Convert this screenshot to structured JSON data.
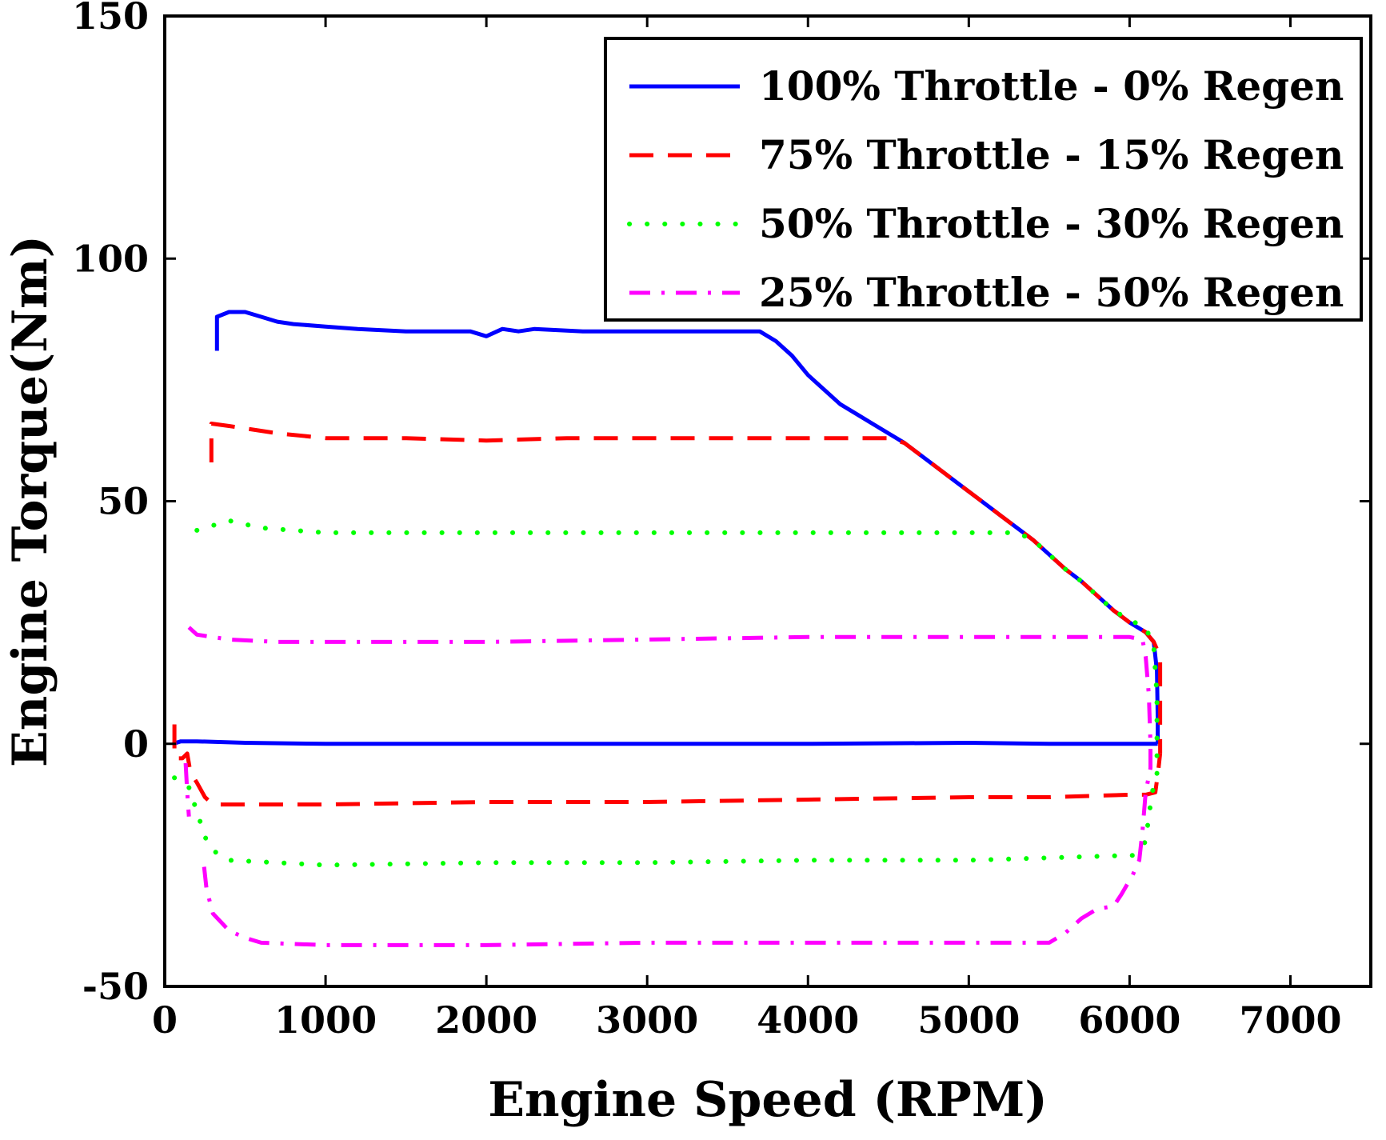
{
  "chart_data": {
    "type": "line",
    "title": "",
    "xlabel": "Engine Speed (RPM)",
    "ylabel": "Engine Torque(Nm)",
    "xlim": [
      0,
      7500
    ],
    "ylim": [
      -50,
      150
    ],
    "xticks": [
      0,
      1000,
      2000,
      3000,
      4000,
      5000,
      6000,
      7000
    ],
    "yticks": [
      -50,
      0,
      50,
      100,
      150
    ],
    "grid": false,
    "legend_position": "top-right",
    "series": [
      {
        "name": "100% Throttle - 0% Regen",
        "color": "#0000ff",
        "style": "solid",
        "segments": [
          {
            "points": [
              [
                325,
                81
              ],
              [
                325,
                88
              ],
              [
                400,
                89
              ],
              [
                500,
                89
              ],
              [
                600,
                88
              ],
              [
                700,
                87
              ],
              [
                800,
                86.5
              ],
              [
                1000,
                86
              ],
              [
                1200,
                85.5
              ],
              [
                1500,
                85
              ],
              [
                1900,
                85
              ],
              [
                2000,
                84
              ],
              [
                2100,
                85.5
              ],
              [
                2200,
                85
              ],
              [
                2300,
                85.5
              ],
              [
                2600,
                85
              ],
              [
                3000,
                85
              ],
              [
                3500,
                85
              ],
              [
                3700,
                85
              ],
              [
                3800,
                83
              ],
              [
                3900,
                80
              ],
              [
                4000,
                76
              ],
              [
                4100,
                73
              ],
              [
                4200,
                70
              ],
              [
                4300,
                68
              ],
              [
                4400,
                66
              ],
              [
                4500,
                64
              ],
              [
                4600,
                62
              ],
              [
                4700,
                59.5
              ],
              [
                4800,
                57
              ],
              [
                4900,
                54.5
              ],
              [
                5000,
                52
              ],
              [
                5100,
                49.5
              ],
              [
                5200,
                47
              ],
              [
                5300,
                44.5
              ],
              [
                5400,
                42
              ],
              [
                5500,
                39
              ],
              [
                5600,
                36
              ],
              [
                5700,
                33.5
              ],
              [
                5800,
                30.5
              ],
              [
                5900,
                27.5
              ],
              [
                6000,
                25
              ],
              [
                6100,
                23
              ],
              [
                6150,
                21
              ],
              [
                6170,
                15
              ],
              [
                6175,
                5
              ],
              [
                6175,
                0
              ]
            ]
          },
          {
            "points": [
              [
                50,
                0
              ],
              [
                100,
                0.5
              ],
              [
                200,
                0.5
              ],
              [
                500,
                0.2
              ],
              [
                1000,
                0
              ],
              [
                2000,
                0
              ],
              [
                3000,
                0
              ],
              [
                4000,
                0
              ],
              [
                5000,
                0.2
              ],
              [
                5500,
                0
              ],
              [
                6000,
                0
              ],
              [
                6175,
                0
              ]
            ]
          }
        ]
      },
      {
        "name": "75% Throttle - 15% Regen",
        "color": "#ff0000",
        "style": "dashed",
        "segments": [
          {
            "points": [
              [
                290,
                58
              ],
              [
                290,
                66
              ],
              [
                400,
                65.5
              ],
              [
                700,
                64
              ],
              [
                1000,
                63
              ],
              [
                1500,
                63
              ],
              [
                2000,
                62.5
              ],
              [
                2500,
                63
              ],
              [
                3000,
                63
              ],
              [
                3500,
                63
              ],
              [
                4000,
                63
              ],
              [
                4500,
                63
              ],
              [
                4600,
                62
              ],
              [
                4700,
                59.5
              ],
              [
                4800,
                57
              ],
              [
                4900,
                54.5
              ],
              [
                5000,
                52
              ],
              [
                5100,
                49.5
              ],
              [
                5200,
                47
              ],
              [
                5300,
                44.5
              ],
              [
                5400,
                42
              ],
              [
                5500,
                39
              ],
              [
                5600,
                36
              ],
              [
                5700,
                33.5
              ],
              [
                5800,
                30.5
              ],
              [
                5900,
                27.5
              ],
              [
                6000,
                25
              ],
              [
                6100,
                23
              ],
              [
                6150,
                21
              ],
              [
                6190,
                18
              ],
              [
                6190,
                -2
              ]
            ]
          },
          {
            "points": [
              [
                60,
                4
              ],
              [
                60,
                -3
              ],
              [
                110,
                -3
              ],
              [
                140,
                -2
              ],
              [
                160,
                -6
              ],
              [
                200,
                -8
              ],
              [
                250,
                -11
              ],
              [
                300,
                -12.5
              ],
              [
                600,
                -12.5
              ],
              [
                1000,
                -12.5
              ],
              [
                2000,
                -12
              ],
              [
                3000,
                -12
              ],
              [
                4000,
                -11.5
              ],
              [
                5000,
                -11
              ],
              [
                5500,
                -11
              ],
              [
                6000,
                -10.5
              ],
              [
                6100,
                -10.5
              ],
              [
                6160,
                -10
              ],
              [
                6180,
                -5
              ],
              [
                6190,
                -2
              ]
            ]
          }
        ]
      },
      {
        "name": "50% Throttle - 30% Regen",
        "color": "#00ff00",
        "style": "dotted",
        "segments": [
          {
            "points": [
              [
                200,
                44
              ],
              [
                400,
                46
              ],
              [
                600,
                44.5
              ],
              [
                1000,
                43.5
              ],
              [
                2000,
                43.5
              ],
              [
                3000,
                43.5
              ],
              [
                4000,
                43.5
              ],
              [
                5000,
                43.5
              ],
              [
                5200,
                43.5
              ],
              [
                5300,
                43.5
              ],
              [
                5400,
                42
              ],
              [
                5500,
                39
              ],
              [
                5600,
                36
              ],
              [
                5700,
                33.5
              ],
              [
                5800,
                30.5
              ],
              [
                5900,
                27.5
              ],
              [
                6000,
                25.5
              ],
              [
                6100,
                24
              ],
              [
                6150,
                20
              ],
              [
                6170,
                10
              ],
              [
                6170,
                0
              ],
              [
                6170,
                -7
              ],
              [
                6140,
                -10
              ],
              [
                6100,
                -20
              ],
              [
                6050,
                -23
              ]
            ]
          },
          {
            "points": [
              [
                60,
                -7
              ],
              [
                150,
                -9
              ],
              [
                180,
                -12
              ],
              [
                220,
                -16
              ],
              [
                260,
                -20
              ],
              [
                300,
                -22
              ],
              [
                400,
                -24
              ],
              [
                1000,
                -25
              ],
              [
                2000,
                -24.5
              ],
              [
                3000,
                -24.5
              ],
              [
                4000,
                -24
              ],
              [
                5000,
                -24
              ],
              [
                6000,
                -23
              ],
              [
                6050,
                -23
              ]
            ]
          }
        ]
      },
      {
        "name": "25% Throttle - 50% Regen",
        "color": "#ff00ff",
        "style": "dashdot",
        "segments": [
          {
            "points": [
              [
                150,
                24
              ],
              [
                200,
                22.5
              ],
              [
                400,
                21.5
              ],
              [
                700,
                21
              ],
              [
                1000,
                21
              ],
              [
                2000,
                21
              ],
              [
                3000,
                21.5
              ],
              [
                4000,
                22
              ],
              [
                5000,
                22
              ],
              [
                5500,
                22
              ],
              [
                6000,
                22
              ],
              [
                6080,
                21.5
              ],
              [
                6100,
                18
              ],
              [
                6120,
                10
              ],
              [
                6130,
                0
              ],
              [
                6130,
                -5
              ],
              [
                6100,
                -10
              ],
              [
                6080,
                -18
              ],
              [
                6060,
                -24
              ],
              [
                6020,
                -27
              ],
              [
                5950,
                -31
              ],
              [
                5900,
                -33.5
              ],
              [
                5800,
                -34
              ],
              [
                5700,
                -36
              ],
              [
                5600,
                -39
              ],
              [
                5500,
                -41
              ],
              [
                5000,
                -41
              ],
              [
                4000,
                -41
              ],
              [
                3000,
                -41
              ],
              [
                2000,
                -41.5
              ],
              [
                1500,
                -41.5
              ],
              [
                1000,
                -41.5
              ],
              [
                600,
                -41
              ],
              [
                500,
                -40
              ],
              [
                400,
                -38.5
              ],
              [
                300,
                -35
              ],
              [
                260,
                -30
              ],
              [
                250,
                -27
              ],
              [
                240,
                -24
              ]
            ]
          },
          {
            "points": [
              [
                130,
                -4
              ],
              [
                140,
                -10
              ],
              [
                150,
                -15
              ]
            ]
          }
        ]
      }
    ]
  }
}
